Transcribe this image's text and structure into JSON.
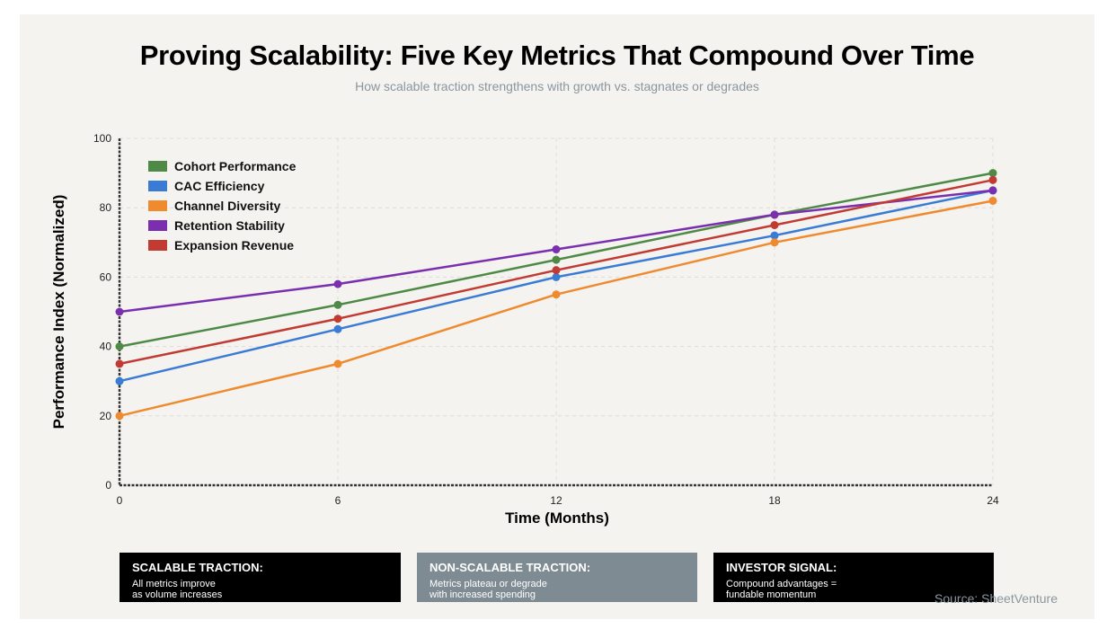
{
  "chart_data": {
    "type": "line",
    "title": "Proving Scalability: Five Key Metrics That Compound Over Time",
    "subtitle": "How scalable traction strengthens with growth vs. stagnates or degrades",
    "xlabel": "Time (Months)",
    "ylabel": "Performance Index (Normalized)",
    "x": [
      0,
      6,
      12,
      18,
      24
    ],
    "xticks": [
      "0",
      "6",
      "12",
      "18",
      "24"
    ],
    "yticks": [
      "0",
      "20",
      "40",
      "60",
      "80",
      "100"
    ],
    "xlim": [
      0,
      24
    ],
    "ylim": [
      0,
      100
    ],
    "grid": true,
    "legend_position": "top-left",
    "series": [
      {
        "name": "Cohort Performance",
        "color": "#4e8a46",
        "values": [
          40,
          52,
          65,
          78,
          90
        ]
      },
      {
        "name": "CAC Efficiency",
        "color": "#3a7bd5",
        "values": [
          30,
          45,
          60,
          72,
          85
        ]
      },
      {
        "name": "Channel Diversity",
        "color": "#ef8a2e",
        "values": [
          20,
          35,
          55,
          70,
          82
        ]
      },
      {
        "name": "Retention Stability",
        "color": "#7a2fae",
        "values": [
          50,
          58,
          68,
          78,
          85
        ]
      },
      {
        "name": "Expansion Revenue",
        "color": "#c23b33",
        "values": [
          35,
          48,
          62,
          75,
          88
        ]
      }
    ]
  },
  "callouts": [
    {
      "title": "SCALABLE TRACTION:",
      "lines": [
        "All metrics improve",
        "as volume increases"
      ]
    },
    {
      "title": "NON-SCALABLE TRACTION:",
      "lines": [
        "Metrics plateau or degrade",
        "with increased spending"
      ]
    },
    {
      "title": "INVESTOR SIGNAL:",
      "lines": [
        "Compound advantages =",
        "fundable momentum"
      ]
    }
  ],
  "source": "Source: SheetVenture"
}
